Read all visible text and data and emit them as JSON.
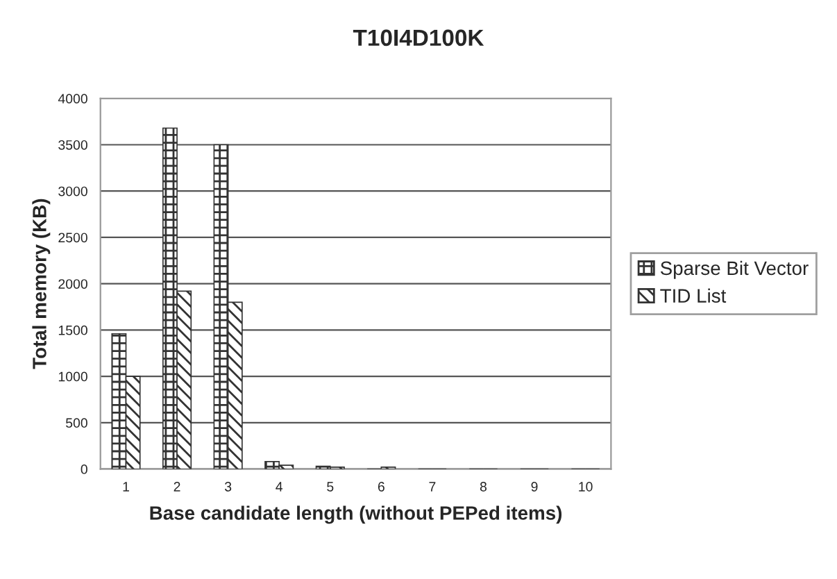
{
  "chart_data": {
    "type": "bar",
    "title": "T10I4D100K",
    "xlabel": "Base candidate length (without PEPed items)",
    "ylabel": "Total memory (KB)",
    "categories": [
      "1",
      "2",
      "3",
      "4",
      "5",
      "6",
      "7",
      "8",
      "9",
      "10"
    ],
    "series": [
      {
        "name": "Sparse Bit Vector",
        "color": "#333333",
        "values": [
          1460,
          3680,
          3500,
          80,
          30,
          0,
          0,
          0,
          0,
          0
        ]
      },
      {
        "name": "TID List",
        "color": "#333333",
        "values": [
          1000,
          1920,
          1800,
          40,
          20,
          20,
          0,
          0,
          0,
          0
        ]
      }
    ],
    "ylim": [
      0,
      4000
    ],
    "yticks": [
      0,
      500,
      1000,
      1500,
      2000,
      2500,
      3000,
      3500,
      4000
    ],
    "grid": "y",
    "legend": "right"
  }
}
